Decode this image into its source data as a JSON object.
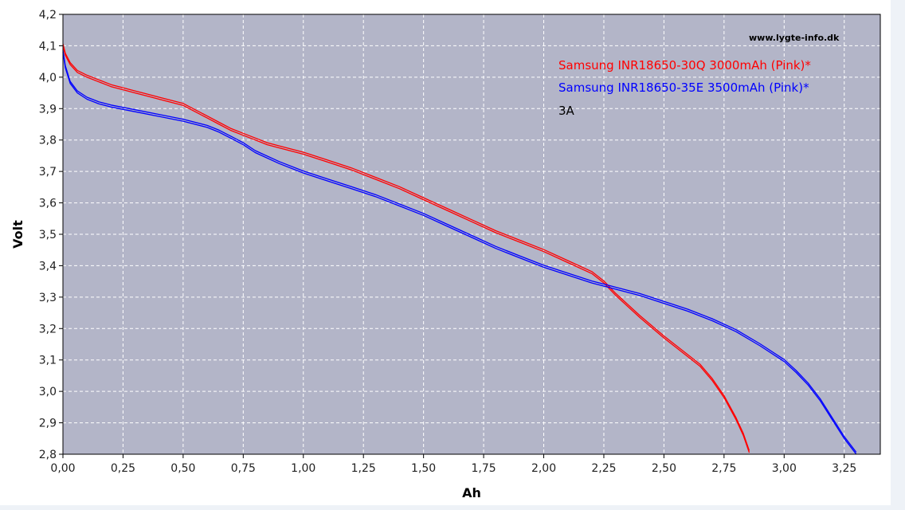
{
  "chart_data": {
    "type": "line",
    "xlabel": "Ah",
    "ylabel": "Volt",
    "xlim": [
      0,
      3.4
    ],
    "ylim": [
      2.8,
      4.2
    ],
    "x_ticks": [
      0,
      0.25,
      0.5,
      0.75,
      1.0,
      1.25,
      1.5,
      1.75,
      2.0,
      2.25,
      2.5,
      2.75,
      3.0,
      3.25
    ],
    "x_tick_labels": [
      "0,00",
      "0,25",
      "0,50",
      "0,75",
      "1,00",
      "1,25",
      "1,50",
      "1,75",
      "2,00",
      "2,25",
      "2,50",
      "2,75",
      "3,00",
      "3,25"
    ],
    "y_ticks": [
      2.8,
      2.9,
      3.0,
      3.1,
      3.2,
      3.3,
      3.4,
      3.5,
      3.6,
      3.7,
      3.8,
      3.9,
      4.0,
      4.1,
      4.2
    ],
    "y_tick_labels": [
      "2,8",
      "2,9",
      "3,0",
      "3,1",
      "3,2",
      "3,3",
      "3,4",
      "3,5",
      "3,6",
      "3,7",
      "3,8",
      "3,9",
      "4,0",
      "4,1",
      "4,2"
    ],
    "grid": true,
    "legend_position": "top-right",
    "watermark": "www.lygte-info.dk",
    "annotation": "3A",
    "plot_background": "#b3b5c8",
    "series": [
      {
        "name": "Samsung INR18650-30Q 3000mAh (Pink)*",
        "color": "#ff0000",
        "x": [
          0.0,
          0.01,
          0.03,
          0.06,
          0.1,
          0.15,
          0.2,
          0.25,
          0.3,
          0.35,
          0.4,
          0.45,
          0.5,
          0.55,
          0.6,
          0.65,
          0.7,
          0.75,
          0.8,
          0.85,
          0.9,
          1.0,
          1.1,
          1.2,
          1.3,
          1.4,
          1.5,
          1.6,
          1.7,
          1.8,
          1.9,
          2.0,
          2.1,
          2.2,
          2.25,
          2.3,
          2.4,
          2.5,
          2.6,
          2.65,
          2.7,
          2.75,
          2.8,
          2.83,
          2.855
        ],
        "y": [
          4.1,
          4.07,
          4.04,
          4.015,
          4.0,
          3.985,
          3.97,
          3.96,
          3.95,
          3.94,
          3.93,
          3.92,
          3.91,
          3.89,
          3.87,
          3.85,
          3.83,
          3.815,
          3.8,
          3.785,
          3.775,
          3.755,
          3.73,
          3.705,
          3.675,
          3.645,
          3.61,
          3.575,
          3.54,
          3.505,
          3.475,
          3.445,
          3.41,
          3.375,
          3.345,
          3.305,
          3.235,
          3.17,
          3.11,
          3.08,
          3.035,
          2.98,
          2.91,
          2.86,
          2.805
        ]
      },
      {
        "name": "Samsung INR18650-35E 3500mAh (Pink)*",
        "color": "#0000ff",
        "x": [
          0.0,
          0.01,
          0.03,
          0.06,
          0.1,
          0.15,
          0.2,
          0.3,
          0.4,
          0.5,
          0.6,
          0.65,
          0.7,
          0.75,
          0.8,
          0.9,
          1.0,
          1.1,
          1.2,
          1.3,
          1.4,
          1.5,
          1.6,
          1.7,
          1.8,
          1.9,
          2.0,
          2.1,
          2.2,
          2.3,
          2.4,
          2.5,
          2.6,
          2.7,
          2.8,
          2.9,
          3.0,
          3.05,
          3.1,
          3.15,
          3.2,
          3.25,
          3.3
        ],
        "y": [
          4.08,
          4.03,
          3.98,
          3.95,
          3.93,
          3.915,
          3.905,
          3.89,
          3.875,
          3.86,
          3.84,
          3.825,
          3.805,
          3.785,
          3.76,
          3.725,
          3.695,
          3.67,
          3.645,
          3.62,
          3.59,
          3.56,
          3.525,
          3.49,
          3.455,
          3.425,
          3.395,
          3.37,
          3.345,
          3.325,
          3.305,
          3.28,
          3.255,
          3.225,
          3.19,
          3.145,
          3.095,
          3.06,
          3.02,
          2.97,
          2.91,
          2.85,
          2.8
        ]
      }
    ]
  }
}
